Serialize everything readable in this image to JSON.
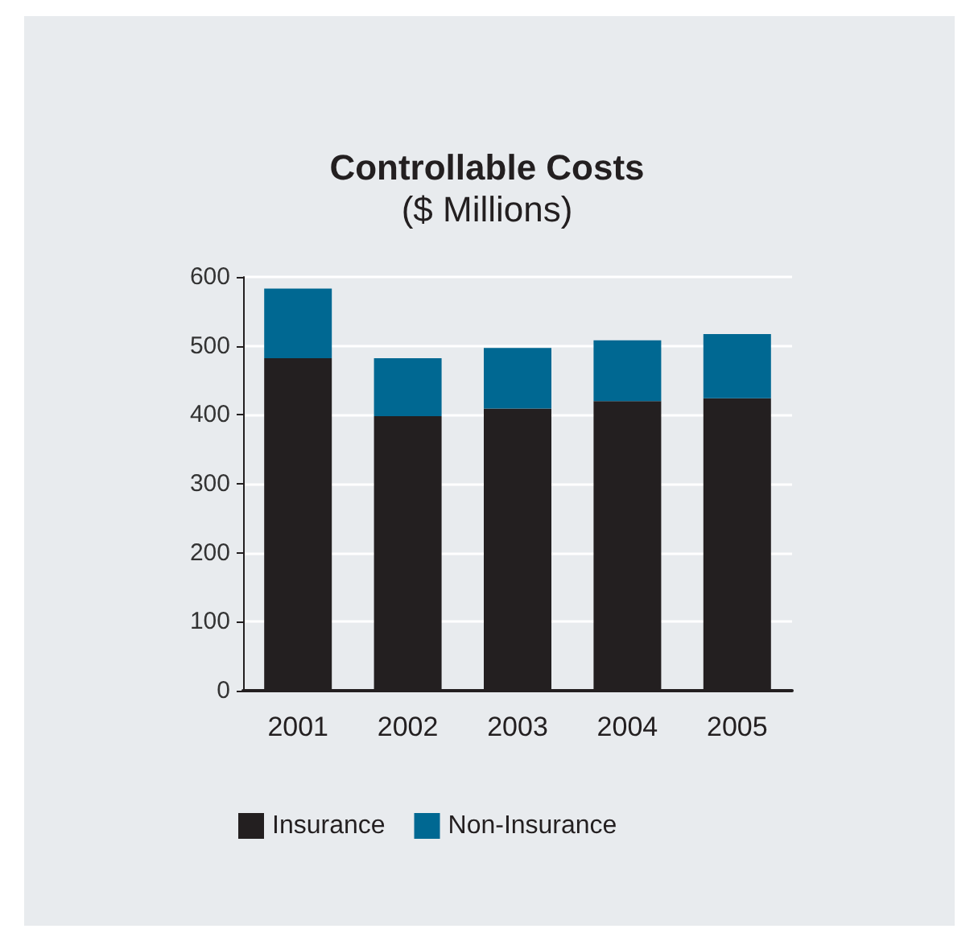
{
  "chart_data": {
    "type": "bar",
    "title": "Controllable Costs",
    "subtitle": "($ Millions)",
    "categories": [
      "2001",
      "2002",
      "2003",
      "2004",
      "2005"
    ],
    "stacked": true,
    "series": [
      {
        "name": "Insurance",
        "color": "#231f20",
        "values": [
          482,
          398,
          409,
          420,
          424
        ]
      },
      {
        "name": "Non-Insurance",
        "color": "#006892",
        "values": [
          101,
          84,
          88,
          88,
          93
        ]
      }
    ],
    "ylim": [
      0,
      600
    ],
    "yticks": [
      0,
      100,
      200,
      300,
      400,
      500,
      600
    ],
    "grid": "y",
    "legend": "bottom left"
  }
}
